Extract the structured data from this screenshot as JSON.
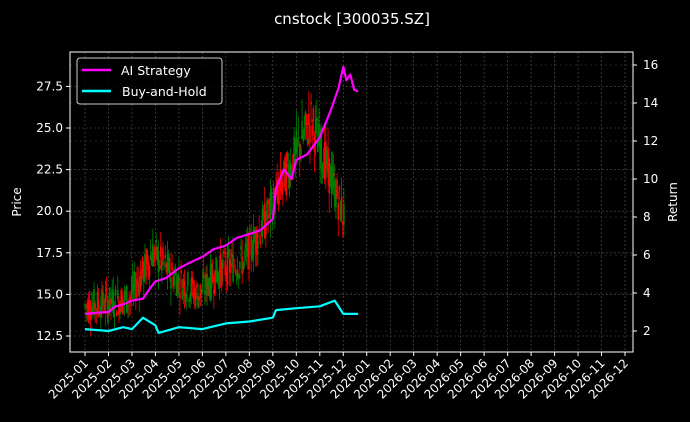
{
  "chart_data": {
    "type": "line",
    "title": "cnstock [300035.SZ]",
    "xlabel": "",
    "ylabel": "Price",
    "ylabel_right": "Return",
    "background": "#000000",
    "grid": true,
    "legend_position": "upper left",
    "x_ticks": [
      "2025-01",
      "2025-02",
      "2025-03",
      "2025-04",
      "2025-05",
      "2025-06",
      "2025-07",
      "2025-08",
      "2025-09",
      "2025-10",
      "2025-11",
      "2025-12",
      "2026-01",
      "2026-02",
      "2026-03",
      "2026-04",
      "2026-05",
      "2026-06",
      "2026-07",
      "2026-08",
      "2026-09",
      "2026-10",
      "2026-11",
      "2026-12"
    ],
    "y_left": {
      "label": "Price",
      "ticks": [
        12.5,
        15.0,
        17.5,
        20.0,
        22.5,
        25.0,
        27.5
      ],
      "tick_labels": [
        "12.5",
        "15.0",
        "17.5",
        "20.0",
        "22.5",
        "25.0",
        "27.5"
      ],
      "range": [
        11.5,
        28.5
      ]
    },
    "y_right": {
      "label": "Return",
      "ticks": [
        2,
        4,
        6,
        8,
        10,
        12,
        14,
        16
      ],
      "tick_labels": [
        "2",
        "4",
        "6",
        "8",
        "10",
        "12",
        "14",
        "16"
      ],
      "range": [
        0.9,
        16.7
      ]
    },
    "legend": [
      {
        "name": "AI Strategy",
        "color": "#ff00ff"
      },
      {
        "name": "Buy-and-Hold",
        "color": "#00ffff"
      }
    ],
    "series": [
      {
        "name": "AI Strategy",
        "axis": "right",
        "color": "#ff00ff",
        "x": [
          "2025-01-01",
          "2025-01-15",
          "2025-02-01",
          "2025-02-10",
          "2025-02-20",
          "2025-03-01",
          "2025-03-15",
          "2025-03-25",
          "2025-04-01",
          "2025-04-15",
          "2025-05-01",
          "2025-05-15",
          "2025-06-01",
          "2025-06-15",
          "2025-07-01",
          "2025-07-15",
          "2025-08-01",
          "2025-08-15",
          "2025-09-01",
          "2025-09-05",
          "2025-09-15",
          "2025-09-25",
          "2025-10-01",
          "2025-10-15",
          "2025-11-01",
          "2025-11-15",
          "2025-11-25",
          "2025-12-01",
          "2025-12-05",
          "2025-12-10",
          "2025-12-15",
          "2025-12-20"
        ],
        "values": [
          2.9,
          2.95,
          3.0,
          3.3,
          3.4,
          3.6,
          3.7,
          4.3,
          4.6,
          4.8,
          5.3,
          5.6,
          5.9,
          6.3,
          6.5,
          6.9,
          7.1,
          7.3,
          7.9,
          9.5,
          10.5,
          10.0,
          11.0,
          11.3,
          12.2,
          13.6,
          14.8,
          15.9,
          15.2,
          15.5,
          14.7,
          14.6
        ]
      },
      {
        "name": "Buy-and-Hold",
        "axis": "right",
        "color": "#00ffff",
        "x": [
          "2025-01-01",
          "2025-02-01",
          "2025-02-20",
          "2025-03-01",
          "2025-03-15",
          "2025-04-01",
          "2025-04-05",
          "2025-05-01",
          "2025-06-01",
          "2025-07-01",
          "2025-08-01",
          "2025-09-01",
          "2025-09-05",
          "2025-10-01",
          "2025-11-01",
          "2025-11-20",
          "2025-12-01",
          "2025-12-20"
        ],
        "values": [
          2.1,
          2.0,
          2.2,
          2.1,
          2.7,
          2.3,
          1.9,
          2.2,
          2.1,
          2.4,
          2.5,
          2.7,
          3.1,
          3.2,
          3.3,
          3.6,
          2.9,
          2.9
        ]
      },
      {
        "name": "Price (candles)",
        "axis": "left",
        "colors": {
          "up": "#008000",
          "down": "#ff0000"
        },
        "x": [
          "2025-01",
          "2025-02",
          "2025-03",
          "2025-04",
          "2025-05",
          "2025-06",
          "2025-07",
          "2025-08",
          "2025-09",
          "2025-10",
          "2025-11",
          "2025-12"
        ],
        "values": [
          14.3,
          14.5,
          14.8,
          17.5,
          16.0,
          15.0,
          16.5,
          17.0,
          19.5,
          22.5,
          25.5,
          21.5
        ]
      }
    ]
  }
}
